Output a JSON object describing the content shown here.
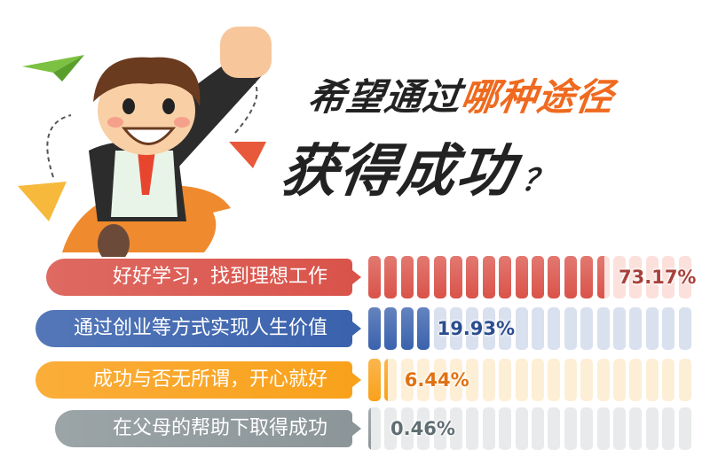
{
  "title": {
    "line1_prefix": "希望通过",
    "line1_highlight": "哪种途径",
    "line2": "获得成功",
    "question_mark": "？"
  },
  "chart_data": {
    "type": "bar",
    "categories": [
      "好好学习，找到理想工作",
      "通过创业等方式实现人生价值",
      "成功与否无所谓，开心就好",
      "在父母的帮助下取得成功"
    ],
    "values": [
      73.17,
      19.93,
      6.44,
      0.46
    ],
    "value_labels": [
      "73.17%",
      "19.93%",
      "6.44%",
      "0.46%"
    ],
    "ylim": [
      0,
      100
    ],
    "segments": 20,
    "colors": [
      "#d9534a",
      "#3a62ad",
      "#f9a11b",
      "#8c9699"
    ],
    "empty_colors": [
      "#fbe0dc",
      "#d9e0ee",
      "#fdefd6",
      "#e8eaeb"
    ],
    "label_colors": [
      "#a8403a",
      "#2b4d8f",
      "#e07213",
      "#5f6e72"
    ]
  }
}
